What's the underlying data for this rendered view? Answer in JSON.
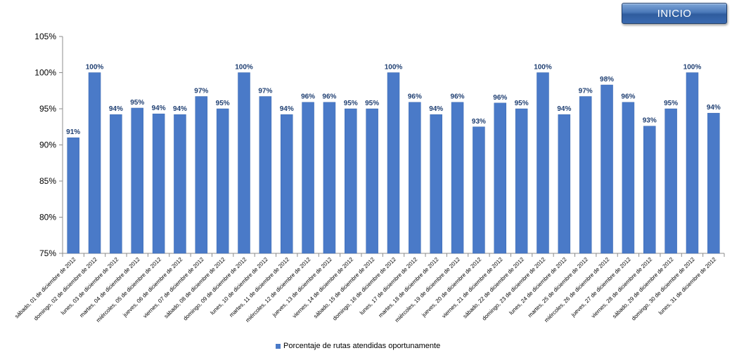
{
  "header": {
    "inicio_label": "INICIO"
  },
  "colors": {
    "bar": "#4a7ac8",
    "bar_stroke": "#3a68b0",
    "data_label": "#1f3f72",
    "axis": "#8c8c8c"
  },
  "chart_data": {
    "type": "bar",
    "title": "",
    "xlabel": "",
    "ylabel": "",
    "ylim": [
      0.75,
      1.05
    ],
    "yticks": [
      "75%",
      "80%",
      "85%",
      "90%",
      "95%",
      "100%",
      "105%"
    ],
    "ytick_values": [
      0.75,
      0.8,
      0.85,
      0.9,
      0.95,
      1.0,
      1.05
    ],
    "grid": false,
    "legend_position": "bottom",
    "categories": [
      "sábado, 01 de diciembre de 2012",
      "domingo, 02 de diciembre de 2012",
      "lunes, 03 de diciembre de 2012",
      "martes, 04 de diciembre de 2012",
      "miércoles, 05 de diciembre de 2012",
      "jueves, 06 de diciembre de 2012",
      "viernes, 07 de diciembre de 2012",
      "sábado, 08 de diciembre de 2012",
      "domingo, 09 de diciembre de 2012",
      "lunes, 10 de diciembre de 2012",
      "martes, 11 de diciembre de 2012",
      "miércoles, 12 de diciembre de 2012",
      "jueves, 13 de diciembre de 2012",
      "viernes, 14 de diciembre de 2012",
      "sábado, 15 de diciembre de 2012",
      "domingo, 16 de diciembre de 2012",
      "lunes, 17 de diciembre de 2012",
      "martes, 18 de diciembre de 2012",
      "miércoles, 19 de diciembre de 2012",
      "jueves, 20 de diciembre de 2012",
      "viernes, 21 de diciembre de 2012",
      "sábado, 22 de diciembre de 2012",
      "domingo, 23 de diciembre de 2012",
      "lunes, 24 de diciembre de 2012",
      "martes, 25 de diciembre de 2012",
      "miércoles, 26 de diciembre de 2012",
      "jueves, 27 de diciembre de 2012",
      "viernes, 28 de diciembre de 2012",
      "sábado, 29 de diciembre de 2012",
      "domingo, 30 de diciembre de 2012",
      "lunes, 31 de diciembre de 2012"
    ],
    "series": [
      {
        "name": "Porcentaje de rutas atendidas oportunamente",
        "values": [
          0.91,
          1.0,
          0.942,
          0.951,
          0.943,
          0.942,
          0.967,
          0.95,
          1.0,
          0.967,
          0.942,
          0.959,
          0.959,
          0.95,
          0.95,
          1.0,
          0.959,
          0.942,
          0.959,
          0.925,
          0.958,
          0.95,
          1.0,
          0.942,
          0.967,
          0.983,
          0.959,
          0.926,
          0.95,
          1.0,
          0.944
        ],
        "labels": [
          "91%",
          "100%",
          "94%",
          "95%",
          "94%",
          "94%",
          "97%",
          "95%",
          "100%",
          "97%",
          "94%",
          "96%",
          "96%",
          "95%",
          "95%",
          "100%",
          "96%",
          "94%",
          "96%",
          "93%",
          "96%",
          "95%",
          "100%",
          "94%",
          "97%",
          "98%",
          "96%",
          "93%",
          "95%",
          "100%",
          "94%"
        ]
      }
    ]
  }
}
